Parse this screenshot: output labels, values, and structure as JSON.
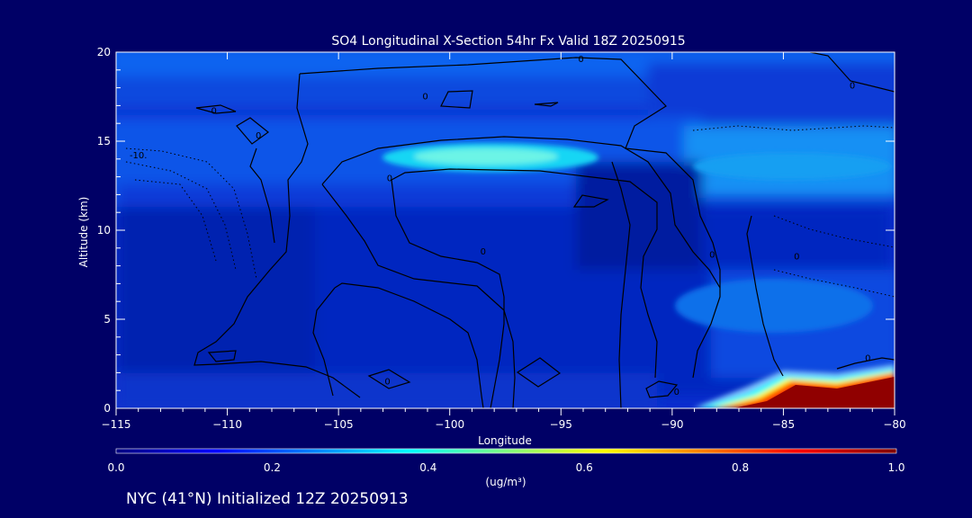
{
  "title": "SO4 Longitudinal X-Section 54hr  Fx Valid 18Z 20250915",
  "footer": "NYC (41°N) Initialized 12Z 20250913",
  "chart_data": {
    "type": "heatmap",
    "title": "SO4 Longitudinal X-Section 54hr  Fx Valid 18Z 20250915",
    "xlabel": "Longitude",
    "ylabel": "Altitude (km)",
    "xlim": [
      -115,
      -80
    ],
    "ylim": [
      0,
      20
    ],
    "x_ticks": [
      -115,
      -110,
      -105,
      -100,
      -95,
      -90,
      -85,
      -80
    ],
    "x_tick_labels": [
      "−115",
      "−110",
      "−105",
      "−100",
      "−95",
      "−90",
      "−85",
      "−80"
    ],
    "y_ticks": [
      0,
      5,
      10,
      15,
      20
    ],
    "y_tick_labels": [
      "0",
      "5",
      "10",
      "15",
      "20"
    ],
    "colorbar": {
      "label": "(ug/m³)",
      "min": 0.0,
      "max": 1.0,
      "ticks": [
        0.0,
        0.2,
        0.4,
        0.6,
        0.8,
        1.0
      ],
      "tick_labels": [
        "0.0",
        "0.2",
        "0.4",
        "0.6",
        "0.8",
        "1.0"
      ],
      "colors": [
        "#000080",
        "#0000ff",
        "#0080ff",
        "#00ffff",
        "#80ff80",
        "#ffff00",
        "#ff8000",
        "#ff0000",
        "#800000"
      ]
    },
    "contour_labels": [
      {
        "text": "0",
        "lon": -110.6,
        "alt": 16.7
      },
      {
        "text": "0",
        "lon": -108.6,
        "alt": 15.3
      },
      {
        "text": "0",
        "lon": -101.1,
        "alt": 17.5
      },
      {
        "text": "0",
        "lon": -94.1,
        "alt": 19.6
      },
      {
        "text": "0",
        "lon": -81.9,
        "alt": 18.1
      },
      {
        "text": "0",
        "lon": -102.7,
        "alt": 12.9
      },
      {
        "text": "0",
        "lon": -102.8,
        "alt": 1.5
      },
      {
        "text": "0",
        "lon": -98.5,
        "alt": 8.8
      },
      {
        "text": "0",
        "lon": -89.8,
        "alt": 0.9
      },
      {
        "text": "0",
        "lon": -88.2,
        "alt": 8.6
      },
      {
        "text": "0",
        "lon": -84.4,
        "alt": 8.5
      },
      {
        "text": "0",
        "lon": -81.2,
        "alt": 2.8
      },
      {
        "text": "-10.",
        "lon": -114.0,
        "alt": 14.2
      }
    ]
  }
}
